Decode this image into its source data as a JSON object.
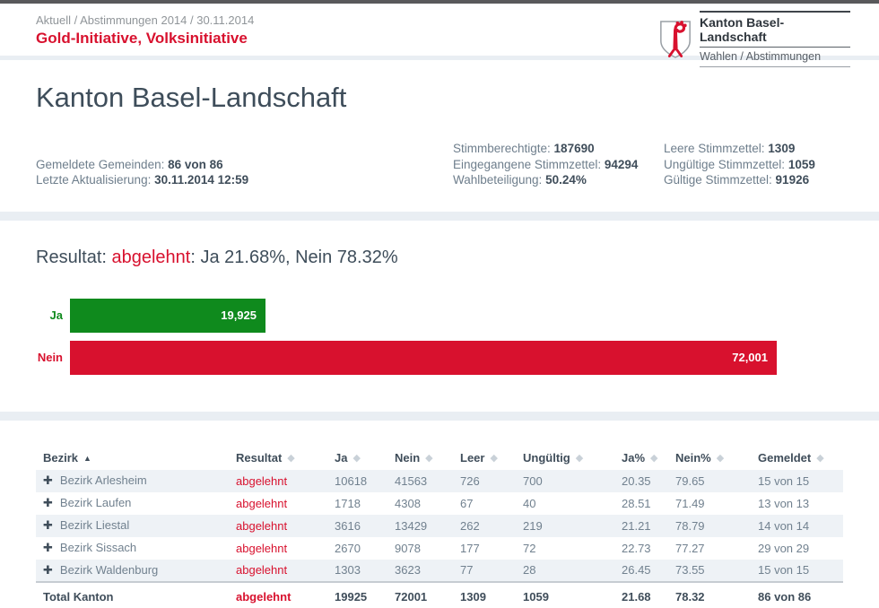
{
  "header": {
    "breadcrumb": "Aktuell / Abstimmungen 2014 / 30.11.2014",
    "page_title": "Gold-Initiative, Volksinitiative",
    "logo": {
      "org": "Kanton Basel-Landschaft",
      "sub": "Wahlen / Abstimmungen",
      "shield_icon": "basel-landschaft-coat-of-arms"
    }
  },
  "overview": {
    "heading": "Kanton Basel-Landschaft",
    "stats_left": [
      {
        "label": "Gemeldete Gemeinden:",
        "value": "86 von 86"
      },
      {
        "label": "Letzte Aktualisierung:",
        "value": "30.11.2014 12:59"
      }
    ],
    "stats_middle": [
      {
        "label": "Stimmberechtigte:",
        "value": "187690"
      },
      {
        "label": "Eingegangene Stimmzettel:",
        "value": "94294"
      },
      {
        "label": "Wahlbeteiligung:",
        "value": "50.24%"
      }
    ],
    "stats_right": [
      {
        "label": "Leere Stimmzettel:",
        "value": "1309"
      },
      {
        "label": "Ungültige Stimmzettel:",
        "value": "1059"
      },
      {
        "label": "Gültige Stimmzettel:",
        "value": "91926"
      }
    ]
  },
  "result": {
    "prefix": "Resultat: ",
    "verdict": "abgelehnt",
    "detail": ": Ja 21.68%, Nein 78.32%"
  },
  "chart_data": {
    "type": "bar",
    "orientation": "horizontal",
    "categories": [
      "Ja",
      "Nein"
    ],
    "values": [
      19925,
      72001
    ],
    "value_labels": [
      "19,925",
      "72,001"
    ],
    "colors": [
      "#0f8a1d",
      "#d8112e"
    ],
    "xlim": [
      0,
      72001
    ],
    "title": "",
    "xlabel": "",
    "ylabel": "",
    "legend": "none",
    "grid": false
  },
  "table": {
    "columns": [
      {
        "label": "Bezirk",
        "key": "bezirk",
        "sort": "asc"
      },
      {
        "label": "Resultat",
        "key": "resultat",
        "sort": "none"
      },
      {
        "label": "Ja",
        "key": "ja",
        "sort": "none"
      },
      {
        "label": "Nein",
        "key": "nein",
        "sort": "none"
      },
      {
        "label": "Leer",
        "key": "leer",
        "sort": "none"
      },
      {
        "label": "Ungültig",
        "key": "ungueltig",
        "sort": "none"
      },
      {
        "label": "Ja%",
        "key": "ja-pct",
        "sort": "none"
      },
      {
        "label": "Nein%",
        "key": "nein-pct",
        "sort": "none"
      },
      {
        "label": "Gemeldet",
        "key": "gemeldet",
        "sort": "none"
      }
    ],
    "rows": [
      [
        "Bezirk Arlesheim",
        "abgelehnt",
        "10618",
        "41563",
        "726",
        "700",
        "20.35",
        "79.65",
        "15 von 15"
      ],
      [
        "Bezirk Laufen",
        "abgelehnt",
        "1718",
        "4308",
        "67",
        "40",
        "28.51",
        "71.49",
        "13 von 13"
      ],
      [
        "Bezirk Liestal",
        "abgelehnt",
        "3616",
        "13429",
        "262",
        "219",
        "21.21",
        "78.79",
        "14 von 14"
      ],
      [
        "Bezirk Sissach",
        "abgelehnt",
        "2670",
        "9078",
        "177",
        "72",
        "22.73",
        "77.27",
        "29 von 29"
      ],
      [
        "Bezirk Waldenburg",
        "abgelehnt",
        "1303",
        "3623",
        "77",
        "28",
        "26.45",
        "73.55",
        "15 von 15"
      ]
    ],
    "total": [
      "Total Kanton",
      "abgelehnt",
      "19925",
      "72001",
      "1309",
      "1059",
      "21.68",
      "78.32",
      "86 von 86"
    ]
  },
  "colors": {
    "accent_red": "#d8112e",
    "accent_green": "#0f8a1d",
    "heading_slate": "#3e4d5a",
    "section_band": "#e9eef3",
    "zebra_row": "#eef2f6"
  }
}
